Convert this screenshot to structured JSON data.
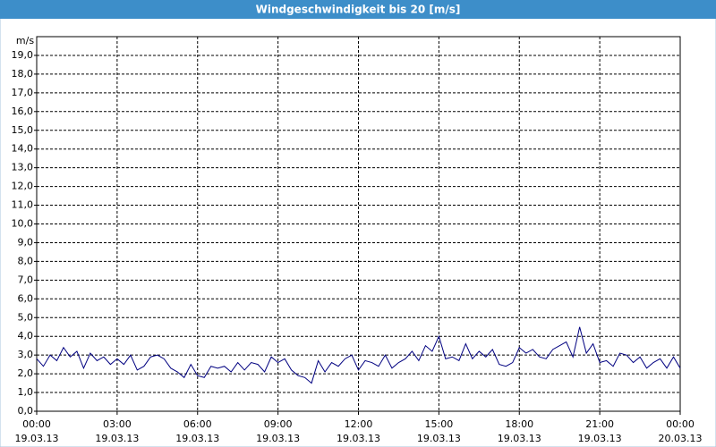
{
  "chart_data": {
    "type": "line",
    "title": "Windgeschwindigkeit bis 20 [m/s]",
    "y_label": "m/s",
    "xlim": [
      0,
      24
    ],
    "ylim": [
      0,
      20
    ],
    "grid": true,
    "xticks": [
      {
        "value": 0,
        "label": "00:00",
        "date": "19.03.13"
      },
      {
        "value": 3,
        "label": "03:00",
        "date": "19.03.13"
      },
      {
        "value": 6,
        "label": "06:00",
        "date": "19.03.13"
      },
      {
        "value": 9,
        "label": "09:00",
        "date": "19.03.13"
      },
      {
        "value": 12,
        "label": "12:00",
        "date": "19.03.13"
      },
      {
        "value": 15,
        "label": "15:00",
        "date": "19.03.13"
      },
      {
        "value": 18,
        "label": "18:00",
        "date": "19.03.13"
      },
      {
        "value": 21,
        "label": "21:00",
        "date": "19.03.13"
      },
      {
        "value": 24,
        "label": "00:00",
        "date": "20.03.13"
      }
    ],
    "yticks": [
      {
        "value": 0,
        "label": "0,0"
      },
      {
        "value": 1,
        "label": "1,0"
      },
      {
        "value": 2,
        "label": "2,0"
      },
      {
        "value": 3,
        "label": "3,0"
      },
      {
        "value": 4,
        "label": "4,0"
      },
      {
        "value": 5,
        "label": "5,0"
      },
      {
        "value": 6,
        "label": "6,0"
      },
      {
        "value": 7,
        "label": "7,0"
      },
      {
        "value": 8,
        "label": "8,0"
      },
      {
        "value": 9,
        "label": "9,0"
      },
      {
        "value": 10,
        "label": "10,0"
      },
      {
        "value": 11,
        "label": "11,0"
      },
      {
        "value": 12,
        "label": "12,0"
      },
      {
        "value": 13,
        "label": "13,0"
      },
      {
        "value": 14,
        "label": "14,0"
      },
      {
        "value": 15,
        "label": "15,0"
      },
      {
        "value": 16,
        "label": "16,0"
      },
      {
        "value": 17,
        "label": "17,0"
      },
      {
        "value": 18,
        "label": "18,0"
      },
      {
        "value": 19,
        "label": "19,0"
      }
    ],
    "x": [
      0,
      0.25,
      0.5,
      0.75,
      1,
      1.25,
      1.5,
      1.75,
      2,
      2.25,
      2.5,
      2.75,
      3,
      3.25,
      3.5,
      3.75,
      4,
      4.25,
      4.5,
      4.75,
      5,
      5.25,
      5.5,
      5.75,
      6,
      6.25,
      6.5,
      6.75,
      7,
      7.25,
      7.5,
      7.75,
      8,
      8.25,
      8.5,
      8.75,
      9,
      9.25,
      9.5,
      9.75,
      10,
      10.25,
      10.5,
      10.75,
      11,
      11.25,
      11.5,
      11.75,
      12,
      12.25,
      12.5,
      12.75,
      13,
      13.25,
      13.5,
      13.75,
      14,
      14.25,
      14.5,
      14.75,
      15,
      15.25,
      15.5,
      15.75,
      16,
      16.25,
      16.5,
      16.75,
      17,
      17.25,
      17.5,
      17.75,
      18,
      18.25,
      18.5,
      18.75,
      19,
      19.25,
      19.5,
      19.75,
      20,
      20.25,
      20.5,
      20.75,
      21,
      21.25,
      21.5,
      21.75,
      22,
      22.25,
      22.5,
      22.75,
      23,
      23.25,
      23.5,
      23.75,
      24
    ],
    "series": [
      {
        "color": "#000080",
        "values": [
          2.8,
          2.4,
          3.0,
          2.7,
          3.4,
          2.9,
          3.2,
          2.3,
          3.1,
          2.7,
          2.9,
          2.5,
          2.8,
          2.5,
          3.0,
          2.2,
          2.4,
          2.9,
          3.0,
          2.8,
          2.3,
          2.1,
          1.8,
          2.5,
          1.9,
          1.8,
          2.4,
          2.3,
          2.4,
          2.1,
          2.6,
          2.2,
          2.6,
          2.5,
          2.1,
          2.9,
          2.6,
          2.8,
          2.2,
          1.9,
          1.8,
          1.5,
          2.7,
          2.1,
          2.6,
          2.4,
          2.8,
          3.0,
          2.2,
          2.7,
          2.6,
          2.4,
          3.0,
          2.3,
          2.6,
          2.8,
          3.2,
          2.7,
          3.5,
          3.2,
          4.0,
          2.8,
          2.9,
          2.7,
          3.6,
          2.8,
          3.2,
          2.9,
          3.3,
          2.5,
          2.4,
          2.6,
          3.4,
          3.1,
          3.3,
          2.9,
          2.8,
          3.3,
          3.5,
          3.7,
          2.9,
          4.5,
          3.1,
          3.6,
          2.6,
          2.7,
          2.4,
          3.1,
          3.0,
          2.6,
          2.9,
          2.3,
          2.6,
          2.8,
          2.3,
          2.9,
          2.3
        ]
      }
    ]
  }
}
